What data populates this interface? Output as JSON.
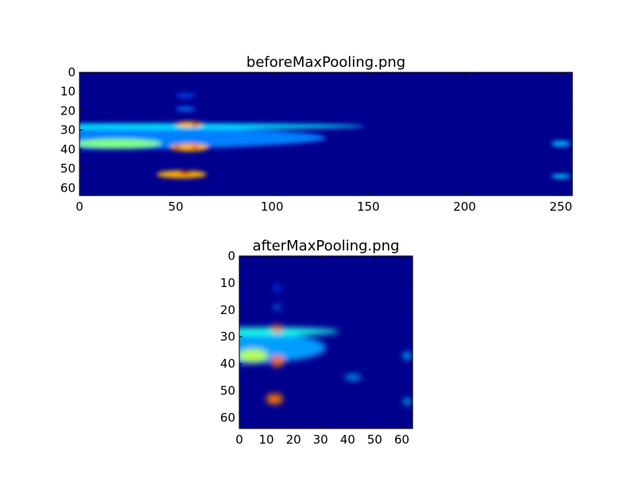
{
  "chart_data": [
    {
      "type": "heatmap",
      "title": "beforeMaxPooling.png",
      "colormap": "jet",
      "xlim": [
        0,
        256
      ],
      "ylim": [
        64,
        0
      ],
      "xticks": [
        "0",
        "50",
        "100",
        "150",
        "200",
        "250"
      ],
      "yticks": [
        "0",
        "10",
        "20",
        "30",
        "40",
        "50",
        "60"
      ],
      "grid": false,
      "background_color": "#00008f",
      "features": [
        {
          "x": 0,
          "y": 34,
          "w": 256,
          "h": 12,
          "v": 0.25
        },
        {
          "x": 40,
          "y": 28,
          "w": 216,
          "h": 3,
          "v": 0.35
        },
        {
          "x": 20,
          "y": 37,
          "w": 45,
          "h": 5,
          "v": 0.5
        },
        {
          "x": 57,
          "y": 27,
          "w": 14,
          "h": 3,
          "v": 0.7
        },
        {
          "x": 60,
          "y": 27,
          "w": 3,
          "h": 2,
          "v": 0.95
        },
        {
          "x": 57,
          "y": 39,
          "w": 20,
          "h": 4,
          "v": 0.7
        },
        {
          "x": 51,
          "y": 39,
          "w": 3,
          "h": 2,
          "v": 0.95
        },
        {
          "x": 60,
          "y": 39,
          "w": 3,
          "h": 2,
          "v": 0.9
        },
        {
          "x": 53,
          "y": 53,
          "w": 26,
          "h": 4,
          "v": 0.7
        },
        {
          "x": 55,
          "y": 52,
          "w": 6,
          "h": 2,
          "v": 0.95
        },
        {
          "x": 55,
          "y": 12,
          "w": 10,
          "h": 2,
          "v": 0.2
        },
        {
          "x": 55,
          "y": 19,
          "w": 10,
          "h": 2,
          "v": 0.25
        },
        {
          "x": 250,
          "y": 54,
          "w": 10,
          "h": 2,
          "v": 0.35
        },
        {
          "x": 250,
          "y": 37,
          "w": 10,
          "h": 3,
          "v": 0.3
        }
      ]
    },
    {
      "type": "heatmap",
      "title": "afterMaxPooling.png",
      "colormap": "jet",
      "xlim": [
        0,
        64
      ],
      "ylim": [
        64,
        0
      ],
      "xticks": [
        "0",
        "10",
        "20",
        "30",
        "40",
        "50",
        "60"
      ],
      "yticks": [
        "0",
        "10",
        "20",
        "30",
        "40",
        "50",
        "60"
      ],
      "grid": false,
      "background_color": "#00008f",
      "features": [
        {
          "x": 0,
          "y": 34,
          "w": 64,
          "h": 12,
          "v": 0.28
        },
        {
          "x": 10,
          "y": 28,
          "w": 54,
          "h": 3,
          "v": 0.4
        },
        {
          "x": 5,
          "y": 37,
          "w": 11,
          "h": 5,
          "v": 0.55
        },
        {
          "x": 14,
          "y": 27,
          "w": 4,
          "h": 3,
          "v": 0.75
        },
        {
          "x": 15,
          "y": 27,
          "w": 1.5,
          "h": 1.5,
          "v": 0.95
        },
        {
          "x": 14,
          "y": 39,
          "w": 5,
          "h": 4,
          "v": 0.75
        },
        {
          "x": 12.5,
          "y": 39,
          "w": 1.5,
          "h": 1.5,
          "v": 0.95
        },
        {
          "x": 14.5,
          "y": 38.5,
          "w": 1.5,
          "h": 1.5,
          "v": 0.9
        },
        {
          "x": 13,
          "y": 53,
          "w": 6,
          "h": 4,
          "v": 0.75
        },
        {
          "x": 13,
          "y": 52,
          "w": 1.8,
          "h": 1.5,
          "v": 0.95
        },
        {
          "x": 14,
          "y": 12,
          "w": 2.5,
          "h": 2,
          "v": 0.2
        },
        {
          "x": 14,
          "y": 19,
          "w": 2.5,
          "h": 2,
          "v": 0.25
        },
        {
          "x": 62,
          "y": 54,
          "w": 3,
          "h": 2,
          "v": 0.35
        },
        {
          "x": 62,
          "y": 37,
          "w": 3,
          "h": 3,
          "v": 0.3
        },
        {
          "x": 42,
          "y": 45,
          "w": 6,
          "h": 2,
          "v": 0.3
        }
      ]
    }
  ]
}
